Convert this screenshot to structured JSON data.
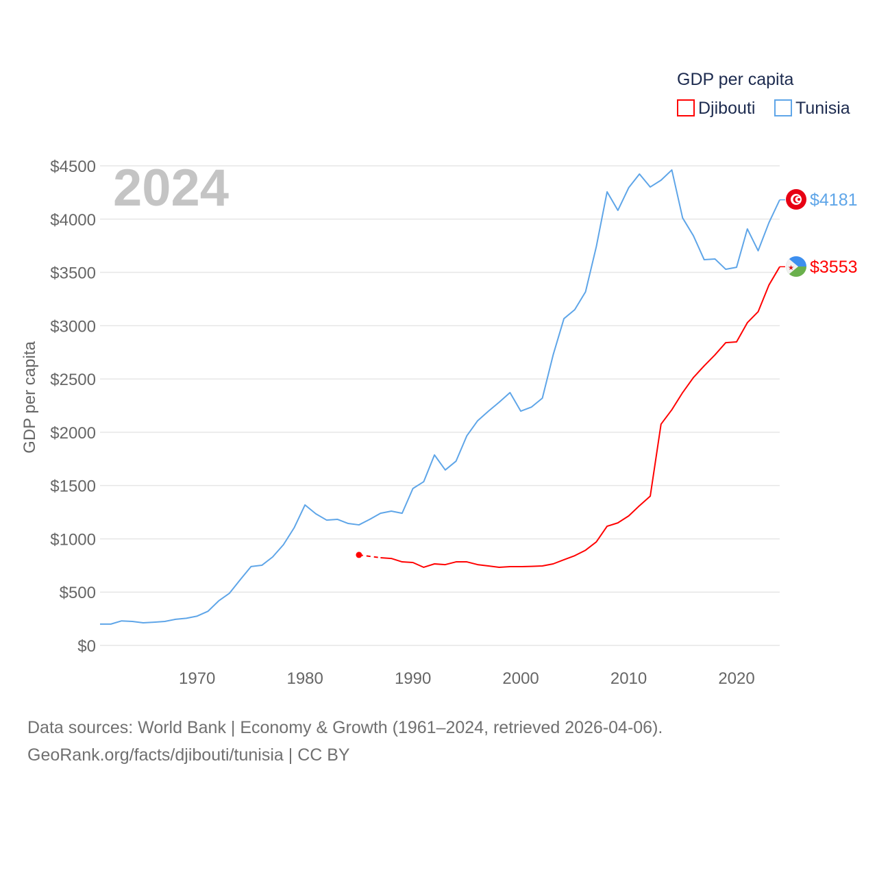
{
  "chart_data": {
    "type": "line",
    "title": "GDP per capita",
    "year_label": "2024",
    "xlabel": "",
    "ylabel": "GDP per capita",
    "xlim": [
      1961,
      2024
    ],
    "ylim": [
      0,
      4500
    ],
    "x_ticks": [
      1970,
      1980,
      1990,
      2000,
      2010,
      2020
    ],
    "y_ticks": [
      0,
      500,
      1000,
      1500,
      2000,
      2500,
      3000,
      3500,
      4000,
      4500
    ],
    "y_tick_labels": [
      "$0",
      "$500",
      "$1000",
      "$1500",
      "$2000",
      "$2500",
      "$3000",
      "$3500",
      "$4000",
      "$4500"
    ],
    "grid": true,
    "legend_placement": "top-right",
    "x": [
      1961,
      1962,
      1963,
      1964,
      1965,
      1966,
      1967,
      1968,
      1969,
      1970,
      1971,
      1972,
      1973,
      1974,
      1975,
      1976,
      1977,
      1978,
      1979,
      1980,
      1981,
      1982,
      1983,
      1984,
      1985,
      1986,
      1987,
      1988,
      1989,
      1990,
      1991,
      1992,
      1993,
      1994,
      1995,
      1996,
      1997,
      1998,
      1999,
      2000,
      2001,
      2002,
      2003,
      2004,
      2005,
      2006,
      2007,
      2008,
      2009,
      2010,
      2011,
      2012,
      2013,
      2014,
      2015,
      2016,
      2017,
      2018,
      2019,
      2020,
      2021,
      2022,
      2023,
      2024
    ],
    "series": [
      {
        "name": "Djibouti",
        "color": "#ff0000",
        "end_label": "$3553",
        "values": [
          null,
          null,
          null,
          null,
          null,
          null,
          null,
          null,
          null,
          null,
          null,
          null,
          null,
          null,
          null,
          null,
          null,
          null,
          null,
          null,
          null,
          null,
          null,
          null,
          849,
          null,
          823,
          816,
          784,
          778,
          733,
          765,
          758,
          784,
          784,
          758,
          746,
          733,
          739,
          739,
          742,
          746,
          765,
          804,
          842,
          893,
          971,
          1118,
          1150,
          1215,
          1311,
          1401,
          2076,
          2211,
          2372,
          2513,
          2623,
          2726,
          2841,
          2848,
          3028,
          3131,
          3381,
          3553
        ]
      },
      {
        "name": "Tunisia",
        "color": "#5ea5e8",
        "end_label": "$4181",
        "values": [
          200,
          200,
          230,
          225,
          212,
          218,
          225,
          245,
          255,
          275,
          320,
          418,
          490,
          617,
          740,
          752,
          830,
          945,
          1105,
          1318,
          1235,
          1176,
          1183,
          1144,
          1131,
          1183,
          1240,
          1260,
          1240,
          1472,
          1536,
          1787,
          1646,
          1729,
          1967,
          2108,
          2198,
          2282,
          2372,
          2198,
          2237,
          2320,
          2726,
          3066,
          3150,
          3317,
          3741,
          4256,
          4082,
          4294,
          4423,
          4301,
          4365,
          4461,
          4011,
          3844,
          3619,
          3626,
          3529,
          3548,
          3908,
          3703,
          3966,
          4181
        ]
      }
    ]
  },
  "footer": {
    "line1": "Data sources: World Bank | Economy & Growth (1961–2024, retrieved 2026-04-06).",
    "line2": "GeoRank.org/facts/djibouti/tunisia | CC BY"
  }
}
